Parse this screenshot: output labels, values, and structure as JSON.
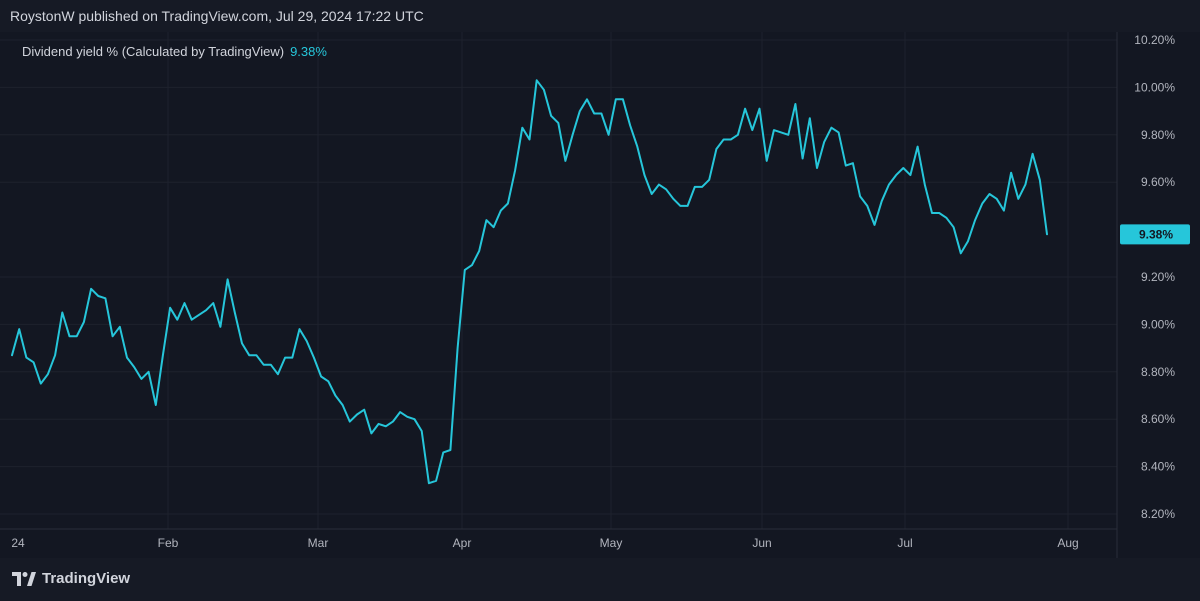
{
  "header": {
    "text": "RoystonW published on TradingView.com, Jul 29, 2024 17:22 UTC"
  },
  "legend": {
    "label": "Dividend yield % (Calculated by TradingView)",
    "value": "9.38%"
  },
  "footer": {
    "brand": "TradingView"
  },
  "colors": {
    "line": "#26c6da",
    "background": "#131722",
    "outer_background": "#161a25",
    "text": "#b2b5be",
    "grid": "#1e222d"
  },
  "chart_data": {
    "type": "line",
    "title": "Dividend yield % (Calculated by TradingView)",
    "ylim": [
      8.2,
      10.2
    ],
    "y_ticks": [
      "10.20%",
      "10.00%",
      "9.80%",
      "9.60%",
      "9.20%",
      "9.00%",
      "8.80%",
      "8.60%",
      "8.40%",
      "8.20%"
    ],
    "x_ticks": [
      "24",
      "Feb",
      "Mar",
      "Apr",
      "May",
      "Jun",
      "Jul",
      "Aug"
    ],
    "last_value_label": "9.38%",
    "series": [
      {
        "values": [
          8.87,
          8.98,
          8.86,
          8.84,
          8.75,
          8.79,
          8.87,
          9.05,
          8.95,
          8.95,
          9.01,
          9.15,
          9.12,
          9.11,
          8.95,
          8.99,
          8.86,
          8.82,
          8.77,
          8.8,
          8.66,
          8.87,
          9.07,
          9.02,
          9.09,
          9.02,
          9.04,
          9.06,
          9.09,
          8.99,
          9.19,
          9.05,
          8.92,
          8.87,
          8.87,
          8.83,
          8.83,
          8.79,
          8.86,
          8.86,
          8.98,
          8.93,
          8.86,
          8.78,
          8.76,
          8.7,
          8.66,
          8.59,
          8.62,
          8.64,
          8.54,
          8.58,
          8.57,
          8.59,
          8.63,
          8.61,
          8.6,
          8.55,
          8.33,
          8.34,
          8.46,
          8.47,
          8.9,
          9.23,
          9.25,
          9.31,
          9.44,
          9.41,
          9.48,
          9.51,
          9.65,
          9.83,
          9.78,
          10.03,
          9.99,
          9.88,
          9.85,
          9.69,
          9.8,
          9.9,
          9.95,
          9.89,
          9.89,
          9.8,
          9.95,
          9.95,
          9.84,
          9.75,
          9.63,
          9.55,
          9.59,
          9.57,
          9.53,
          9.5,
          9.5,
          9.58,
          9.58,
          9.61,
          9.74,
          9.78,
          9.78,
          9.8,
          9.91,
          9.82,
          9.91,
          9.69,
          9.82,
          9.81,
          9.8,
          9.93,
          9.7,
          9.87,
          9.66,
          9.77,
          9.83,
          9.81,
          9.67,
          9.68,
          9.54,
          9.5,
          9.42,
          9.52,
          9.59,
          9.63,
          9.66,
          9.63,
          9.75,
          9.59,
          9.47,
          9.47,
          9.45,
          9.41,
          9.3,
          9.35,
          9.44,
          9.51,
          9.55,
          9.53,
          9.48,
          9.64,
          9.53,
          9.59,
          9.72,
          9.61,
          9.38
        ]
      }
    ]
  }
}
